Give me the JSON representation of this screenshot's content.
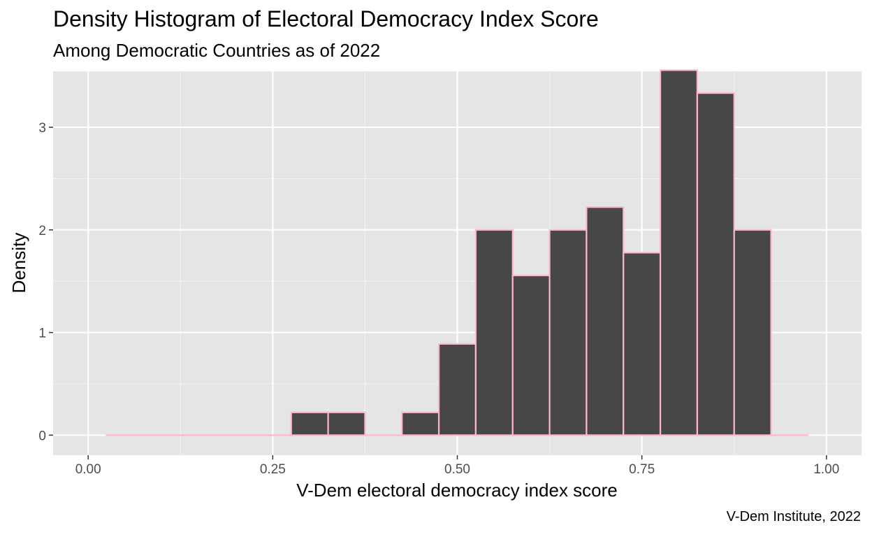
{
  "chart_data": {
    "type": "bar",
    "title": "Density Histogram of Electoral Democracy Index Score",
    "subtitle": "Among Democratic Countries as of 2022",
    "caption": "V-Dem Institute, 2022",
    "xlabel": "V-Dem electoral democracy index score",
    "ylabel": "Density",
    "xlim": [
      -0.0475,
      1.0475
    ],
    "ylim": [
      -0.195,
      3.545
    ],
    "x_ticks": [
      0,
      0.25,
      0.5,
      0.75,
      1
    ],
    "x_tick_labels": [
      "0.00",
      "0.25",
      "0.50",
      "0.75",
      "1.00"
    ],
    "y_ticks": [
      0,
      1,
      2,
      3
    ],
    "y_tick_labels": [
      "0",
      "1",
      "2",
      "3"
    ],
    "grid": true,
    "bin_width": 0.05,
    "bin_centers": [
      0.05,
      0.1,
      0.15,
      0.2,
      0.25,
      0.3,
      0.35,
      0.4,
      0.45,
      0.5,
      0.55,
      0.6,
      0.65,
      0.7,
      0.75,
      0.8,
      0.85,
      0.9,
      0.95
    ],
    "values": [
      0,
      0,
      0,
      0,
      0,
      0.222,
      0.222,
      0,
      0.222,
      0.889,
      2.0,
      1.556,
      2.0,
      2.222,
      1.778,
      3.556,
      3.333,
      2.0,
      0
    ],
    "colors": {
      "bar_fill": "#474747",
      "bar_outline": "#ffb6c8",
      "panel_background": "#e5e5e5",
      "grid_major": "#ffffff",
      "grid_minor": "#f2f2f2"
    }
  }
}
